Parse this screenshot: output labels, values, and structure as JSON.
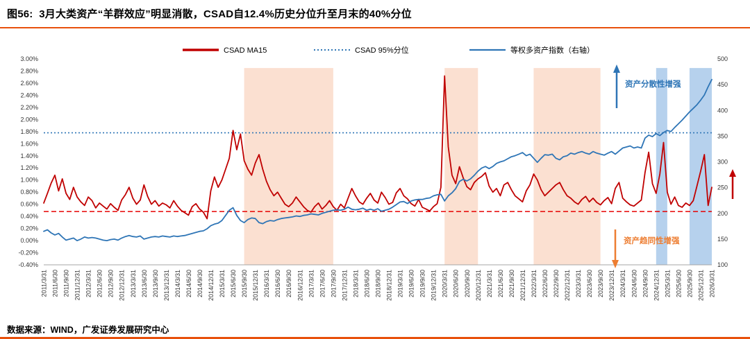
{
  "header": {
    "title": "图56:  3月大类资产“羊群效应”明显消散，CSAD自12.4%历史分位升至月末的40%分位"
  },
  "footer": {
    "source": "数据来源：WIND，广发证券发展研究中心"
  },
  "colors": {
    "accent": "#E8500B",
    "csad_line": "#C00000",
    "index_line": "#2E75B6",
    "dotted_line": "#2E75B6",
    "dashed_line": "#E60000",
    "annotation_blue": "#2E75B6",
    "annotation_orange": "#ED7D31"
  },
  "chart_data": {
    "type": "line",
    "title": "",
    "frequency": "monthly",
    "x_start": "2011/3",
    "x_end": "2026/3",
    "legend": [
      {
        "label": "CSAD MA15",
        "color": "#C00000",
        "style": "solid",
        "axis": "left"
      },
      {
        "label": "CSAD 95%分位",
        "color": "#2E75B6",
        "style": "dotted",
        "axis": "left"
      },
      {
        "label": "等权多资产指数（右轴）",
        "color": "#2E75B6",
        "style": "solid",
        "axis": "right"
      }
    ],
    "left_axis": {
      "min": -0.4,
      "max": 3.0,
      "step": 0.2,
      "format": "percent",
      "ticks": [
        "3.00%",
        "2.80%",
        "2.60%",
        "2.40%",
        "2.20%",
        "2.00%",
        "1.80%",
        "1.60%",
        "1.40%",
        "1.20%",
        "1.00%",
        "0.80%",
        "0.60%",
        "0.40%",
        "0.20%",
        "0.00%",
        "-0.20%",
        "-0.40%"
      ]
    },
    "right_axis": {
      "min": 100,
      "max": 500,
      "step": 50,
      "ticks": [
        "500",
        "450",
        "400",
        "350",
        "300",
        "250",
        "200",
        "150",
        "100"
      ]
    },
    "x_labels": [
      "2011/3/31",
      "2011/6/30",
      "2011/9/30",
      "2011/12/31",
      "2012/3/31",
      "2012/6/30",
      "2012/9/30",
      "2012/12/31",
      "2013/3/31",
      "2013/6/30",
      "2013/9/30",
      "2013/12/31",
      "2014/3/31",
      "2014/6/30",
      "2014/9/30",
      "2014/12/31",
      "2015/3/31",
      "2015/6/30",
      "2015/9/30",
      "2015/12/31",
      "2016/3/31",
      "2016/6/30",
      "2016/9/30",
      "2016/12/31",
      "2017/3/31",
      "2017/6/30",
      "2017/9/30",
      "2017/12/31",
      "2018/3/31",
      "2018/6/30",
      "2018/9/30",
      "2018/12/31",
      "2019/3/31",
      "2019/6/30",
      "2019/9/30",
      "2019/12/31",
      "2020/3/31",
      "2020/6/30",
      "2020/9/30",
      "2020/12/31",
      "2021/3/31",
      "2021/6/30",
      "2021/9/30",
      "2021/12/31",
      "2022/3/31",
      "2022/6/30",
      "2022/9/30",
      "2022/12/31",
      "2023/3/31",
      "2023/6/30",
      "2023/9/30",
      "2023/12/31",
      "2024/3/31",
      "2024/6/30",
      "2024/9/30",
      "2024/12/31",
      "2025/3/31",
      "2025/6/30",
      "2025/9/30",
      "2025/12/31",
      "2026/3/31"
    ],
    "reference_lines": [
      {
        "name": "CSAD 95%分位",
        "name_en": "csad-95pct-line",
        "value": 1.78,
        "axis": "left",
        "color": "#2E75B6",
        "style": "dotted"
      },
      {
        "name": "CSAD分位参考线",
        "name_en": "csad-threshold-line",
        "value": 0.48,
        "axis": "left",
        "color": "#E60000",
        "style": "dashed"
      }
    ],
    "bands": {
      "top_value": 2.85,
      "orange_color": "rgba(246,178,140,0.40)",
      "blue_color": "rgba(143,184,227,0.65)",
      "orange": [
        [
          "2015/9/30",
          "2017/9/30"
        ],
        [
          "2020/3/31",
          "2020/12/31"
        ],
        [
          "2022/3/31",
          "2023/9/30"
        ]
      ],
      "blue": [
        [
          "2024/12/31",
          "2025/3/31"
        ],
        [
          "2025/9/30",
          "2026/3/31"
        ]
      ]
    },
    "series": [
      {
        "name": "CSAD MA15",
        "name_en": "csad-ma15-line",
        "axis": "left",
        "color": "#C00000",
        "unit": "%",
        "values": [
          0.62,
          0.78,
          0.95,
          1.08,
          0.82,
          1.02,
          0.78,
          0.68,
          0.88,
          0.72,
          0.64,
          0.58,
          0.72,
          0.66,
          0.54,
          0.62,
          0.57,
          0.52,
          0.61,
          0.55,
          0.5,
          0.67,
          0.76,
          0.88,
          0.7,
          0.6,
          0.67,
          0.92,
          0.73,
          0.6,
          0.66,
          0.57,
          0.62,
          0.59,
          0.54,
          0.66,
          0.57,
          0.5,
          0.46,
          0.42,
          0.56,
          0.61,
          0.52,
          0.47,
          0.36,
          0.82,
          1.05,
          0.88,
          1.0,
          1.18,
          1.36,
          1.82,
          1.5,
          1.76,
          1.32,
          1.18,
          1.08,
          1.28,
          1.42,
          1.18,
          0.98,
          0.84,
          0.74,
          0.8,
          0.7,
          0.6,
          0.56,
          0.62,
          0.72,
          0.64,
          0.56,
          0.5,
          0.47,
          0.56,
          0.62,
          0.52,
          0.58,
          0.66,
          0.56,
          0.5,
          0.6,
          0.54,
          0.7,
          0.86,
          0.74,
          0.64,
          0.6,
          0.7,
          0.78,
          0.67,
          0.62,
          0.8,
          0.71,
          0.6,
          0.63,
          0.79,
          0.86,
          0.74,
          0.69,
          0.61,
          0.57,
          0.68,
          0.55,
          0.52,
          0.49,
          0.56,
          0.61,
          0.88,
          2.72,
          1.55,
          1.08,
          0.94,
          1.22,
          1.04,
          0.89,
          0.84,
          0.96,
          1.02,
          1.06,
          1.12,
          0.9,
          0.8,
          0.86,
          0.74,
          0.92,
          0.96,
          0.84,
          0.74,
          0.69,
          0.64,
          0.82,
          0.92,
          1.1,
          1.0,
          0.84,
          0.74,
          0.8,
          0.86,
          0.92,
          0.96,
          0.84,
          0.74,
          0.7,
          0.64,
          0.6,
          0.68,
          0.73,
          0.64,
          0.7,
          0.63,
          0.59,
          0.66,
          0.71,
          0.61,
          0.86,
          0.96,
          0.7,
          0.64,
          0.59,
          0.57,
          0.62,
          0.67,
          1.12,
          1.46,
          0.94,
          0.78,
          1.1,
          1.62,
          0.8,
          0.6,
          0.72,
          0.58,
          0.55,
          0.62,
          0.58,
          0.66,
          0.9,
          1.15,
          1.42,
          0.58,
          0.88
        ]
      },
      {
        "name": "等权多资产指数（右轴）",
        "name_en": "equal-weight-index-line",
        "axis": "right",
        "color": "#2E75B6",
        "unit": "index",
        "values": [
          165,
          168,
          162,
          158,
          161,
          154,
          148,
          150,
          152,
          147,
          150,
          154,
          152,
          153,
          152,
          150,
          148,
          147,
          149,
          150,
          148,
          152,
          155,
          157,
          155,
          154,
          156,
          150,
          152,
          154,
          155,
          154,
          156,
          155,
          154,
          156,
          155,
          156,
          157,
          159,
          161,
          163,
          165,
          166,
          170,
          176,
          179,
          181,
          186,
          196,
          206,
          211,
          196,
          186,
          182,
          188,
          191,
          190,
          182,
          180,
          184,
          186,
          185,
          188,
          190,
          191,
          192,
          193,
          195,
          194,
          196,
          197,
          199,
          198,
          197,
          200,
          202,
          204,
          206,
          207,
          206,
          208,
          212,
          208,
          207,
          208,
          210,
          206,
          208,
          206,
          209,
          204,
          206,
          208,
          212,
          217,
          222,
          223,
          219,
          224,
          226,
          227,
          227,
          229,
          230,
          234,
          236,
          237,
          224,
          234,
          240,
          248,
          262,
          266,
          263,
          267,
          274,
          282,
          288,
          291,
          287,
          291,
          297,
          300,
          302,
          306,
          310,
          312,
          315,
          318,
          312,
          315,
          307,
          299,
          307,
          314,
          313,
          315,
          307,
          304,
          310,
          312,
          317,
          315,
          318,
          320,
          317,
          315,
          320,
          317,
          315,
          313,
          317,
          320,
          315,
          321,
          327,
          329,
          331,
          327,
          329,
          327,
          346,
          352,
          349,
          355,
          351,
          357,
          361,
          359,
          367,
          374,
          381,
          389,
          397,
          404,
          411,
          420,
          430,
          446,
          460
        ]
      }
    ],
    "annotations": [
      {
        "text": "资产分散性增强",
        "color": "#2E75B6",
        "arrow": "up"
      },
      {
        "text": "资产趋同性增强",
        "color": "#ED7D31",
        "arrow": "down"
      },
      {
        "text": "",
        "color": "#C00000",
        "arrow": "up"
      }
    ]
  }
}
